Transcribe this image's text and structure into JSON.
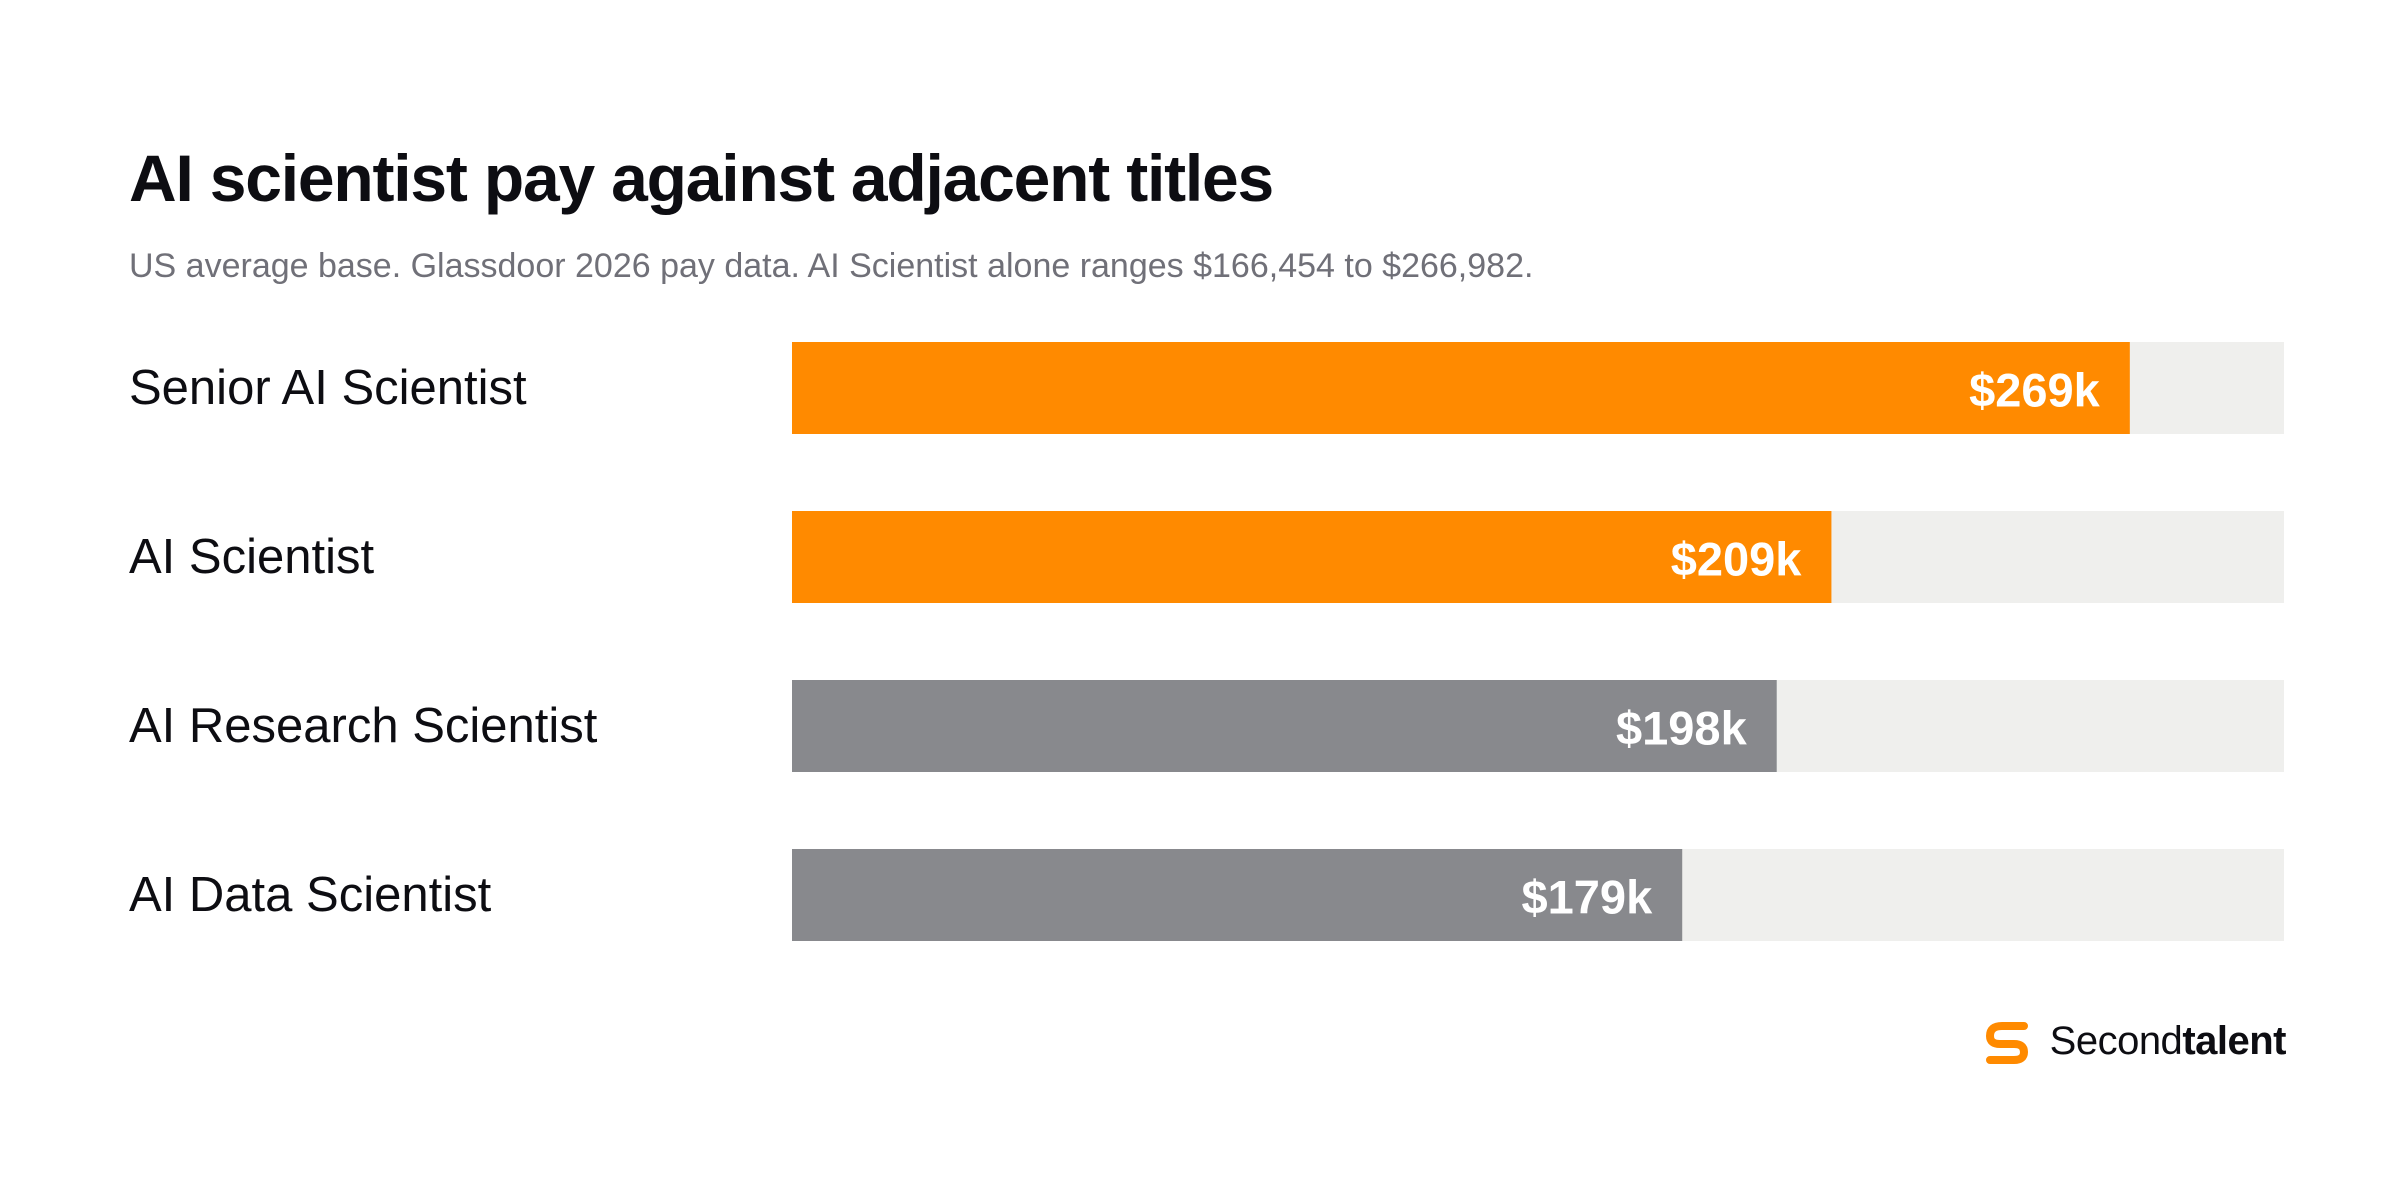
{
  "header": {
    "title": "AI scientist pay against adjacent titles",
    "subtitle": "US average base. Glassdoor 2026 pay data. AI Scientist alone ranges $166,454 to $266,982."
  },
  "chart_data": {
    "type": "bar",
    "orientation": "horizontal",
    "title": "AI scientist pay against adjacent titles",
    "subtitle": "US average base. Glassdoor 2026 pay data. AI Scientist alone ranges $166,454 to $266,982.",
    "categories": [
      "Senior AI Scientist",
      "AI Scientist",
      "AI Research Scientist",
      "AI Data Scientist"
    ],
    "values": [
      269,
      209,
      198,
      179
    ],
    "value_labels": [
      "$269k",
      "$209k",
      "$198k",
      "$179k"
    ],
    "xlim": [
      0,
      300
    ],
    "grid": false,
    "colors": {
      "highlight": "#ff8a00",
      "muted": "#88898d",
      "track": "#efefed"
    },
    "highlighted": [
      true,
      true,
      false,
      false
    ]
  },
  "brand": {
    "icon": "secondtalent-logo-icon",
    "name_part1": "Second",
    "name_part2": "talent",
    "color": "#ff8a00"
  }
}
